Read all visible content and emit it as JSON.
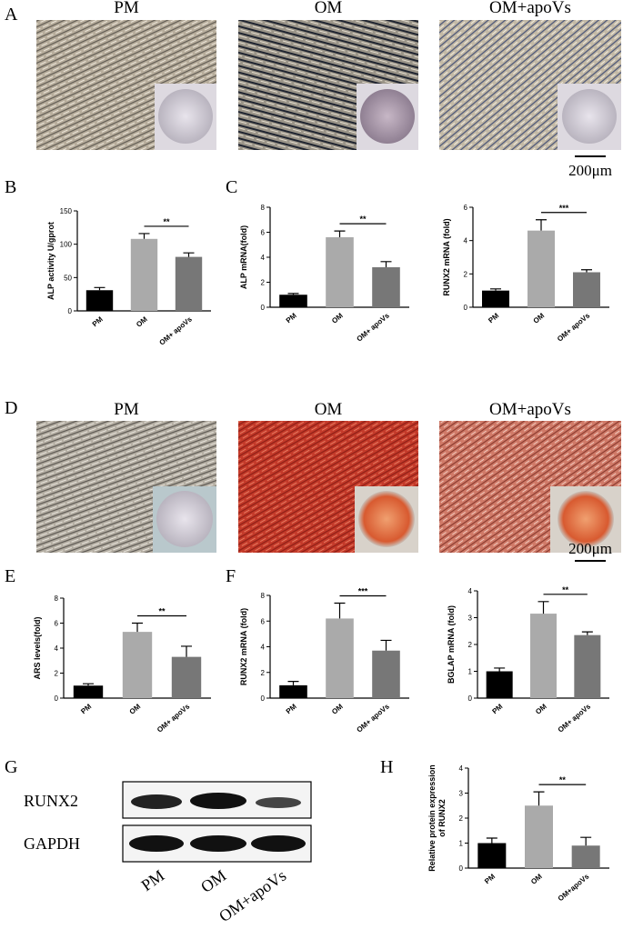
{
  "panel_letters": [
    "A",
    "B",
    "C",
    "D",
    "E",
    "F",
    "G",
    "H"
  ],
  "panel_a": {
    "titles": [
      "PM",
      "OM",
      "OM+apoVs"
    ],
    "scale_bar": "200μm"
  },
  "panel_d": {
    "titles": [
      "PM",
      "OM",
      "OM+apoVs"
    ],
    "scale_bar": "200μm"
  },
  "panel_g": {
    "bands": [
      "RUNX2",
      "GAPDH"
    ],
    "lanes": [
      "PM",
      "OM",
      "OM+apoVs"
    ]
  },
  "chart_data": [
    {
      "type": "bar",
      "ylabel": "ALP activity U/gprot",
      "categories": [
        "PM",
        "OM",
        "OM+ apoVs"
      ],
      "values": [
        31,
        108,
        81
      ],
      "errors": [
        4,
        8,
        6
      ],
      "colors": [
        "#000000",
        "#aaaaaa",
        "#777777"
      ],
      "ylim": [
        0,
        150
      ],
      "yticks": [
        0,
        50,
        100,
        150
      ],
      "annotation": "**"
    },
    {
      "type": "bar",
      "ylabel": "ALP mRNA(fold)",
      "categories": [
        "PM",
        "OM",
        "OM+ apoVs"
      ],
      "values": [
        1.0,
        5.6,
        3.2
      ],
      "errors": [
        0.1,
        0.5,
        0.45
      ],
      "colors": [
        "#000000",
        "#aaaaaa",
        "#777777"
      ],
      "ylim": [
        0,
        8
      ],
      "yticks": [
        0,
        2,
        4,
        6,
        8
      ],
      "annotation": "**"
    },
    {
      "type": "bar",
      "ylabel": "RUNX2 mRNA (fold)",
      "categories": [
        "PM",
        "OM",
        "OM+ apoVs"
      ],
      "values": [
        1.0,
        4.6,
        2.1
      ],
      "errors": [
        0.1,
        0.65,
        0.15
      ],
      "colors": [
        "#000000",
        "#aaaaaa",
        "#777777"
      ],
      "ylim": [
        0,
        6
      ],
      "yticks": [
        0,
        2,
        4,
        6
      ],
      "annotation": "***"
    },
    {
      "type": "bar",
      "ylabel": "ARS levels(fold)",
      "categories": [
        "PM",
        "OM",
        "OM+ apoVs"
      ],
      "values": [
        1.0,
        5.3,
        3.3
      ],
      "errors": [
        0.15,
        0.7,
        0.85
      ],
      "colors": [
        "#000000",
        "#aaaaaa",
        "#777777"
      ],
      "ylim": [
        0,
        8
      ],
      "yticks": [
        0,
        2,
        4,
        6,
        8
      ],
      "annotation": "**"
    },
    {
      "type": "bar",
      "ylabel": "RUNX2 mRNA (fold)",
      "categories": [
        "PM",
        "OM",
        "OM+ apoVs"
      ],
      "values": [
        1.0,
        6.2,
        3.7
      ],
      "errors": [
        0.3,
        1.2,
        0.8
      ],
      "colors": [
        "#000000",
        "#aaaaaa",
        "#777777"
      ],
      "ylim": [
        0,
        8
      ],
      "yticks": [
        0,
        2,
        4,
        6,
        8
      ],
      "annotation": "***"
    },
    {
      "type": "bar",
      "ylabel": "BGLAP mRNA (fold)",
      "categories": [
        "PM",
        "OM",
        "OM+ apoVs"
      ],
      "values": [
        1.0,
        3.15,
        2.35
      ],
      "errors": [
        0.12,
        0.45,
        0.12
      ],
      "colors": [
        "#000000",
        "#aaaaaa",
        "#777777"
      ],
      "ylim": [
        0,
        4
      ],
      "yticks": [
        0,
        1,
        2,
        3,
        4
      ],
      "annotation": "**"
    },
    {
      "type": "bar",
      "ylabel": [
        "Relative protein expression",
        "of RUNX2"
      ],
      "categories": [
        "PM",
        "OM",
        "OM+apoVs"
      ],
      "values": [
        1.0,
        2.5,
        0.9
      ],
      "errors": [
        0.2,
        0.55,
        0.33
      ],
      "colors": [
        "#000000",
        "#aaaaaa",
        "#777777"
      ],
      "ylim": [
        0,
        4
      ],
      "yticks": [
        0,
        1,
        2,
        3,
        4
      ],
      "annotation": "**"
    }
  ]
}
